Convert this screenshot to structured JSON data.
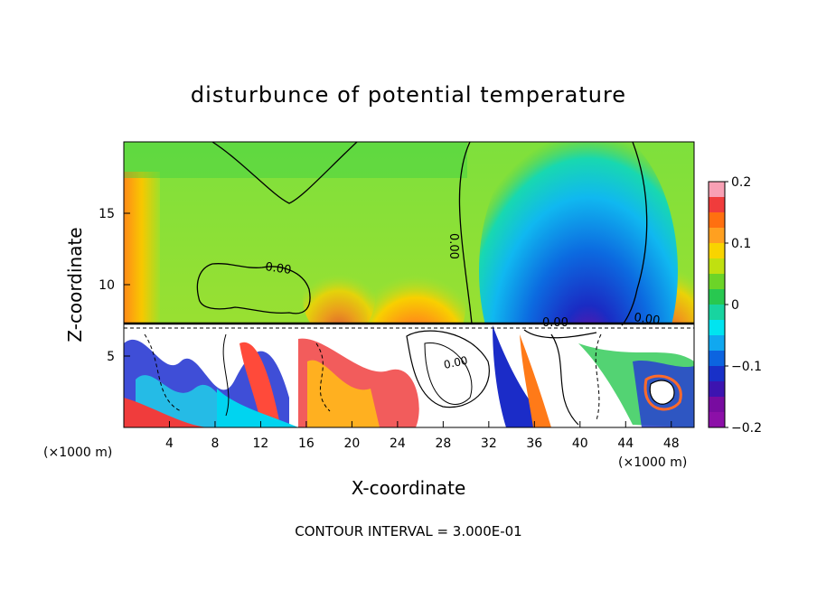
{
  "chart_data": {
    "type": "heatmap",
    "title": "disturbunce of potential temperature",
    "xlabel": "X-coordinate",
    "ylabel": "Z-coordinate",
    "x_unit": "(×1000 m)",
    "x_unit_right": "(×1000 m)",
    "footer": "CONTOUR INTERVAL = 3.000E-01",
    "xlim": [
      0,
      50
    ],
    "ylim": [
      0,
      20
    ],
    "x_ticks": [
      4,
      8,
      12,
      16,
      20,
      24,
      28,
      32,
      36,
      40,
      44,
      48
    ],
    "y_ticks": [
      5,
      10,
      15
    ],
    "contour_interval": 0.3,
    "contour_labels": [
      "0.00",
      "0.00",
      "0.00",
      "0.00",
      "0.00"
    ],
    "colorbar": {
      "range": [
        -0.2,
        0.2
      ],
      "ticks": [
        "0.2",
        "0.1",
        "0",
        "−0.1",
        "−0.2"
      ],
      "colors": [
        "#f8a0b4",
        "#f03c3c",
        "#ff7010",
        "#ffa020",
        "#f8d400",
        "#c0e010",
        "#6cd428",
        "#28c850",
        "#18d4a0",
        "#00e4f0",
        "#10a8f0",
        "#0c64e0",
        "#1830c8",
        "#3c14b0",
        "#780ca0",
        "#8c10a8"
      ]
    },
    "grid": false,
    "legend": "right"
  }
}
